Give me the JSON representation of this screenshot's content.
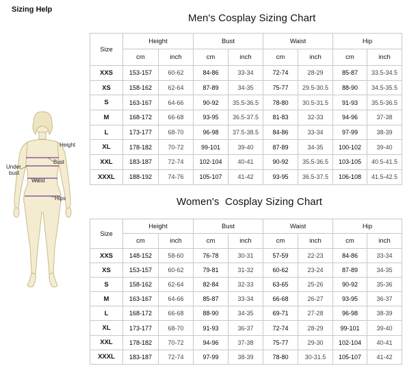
{
  "page": {
    "title": "Sizing Help"
  },
  "figure": {
    "labels": {
      "height": "Height",
      "bust": "Bust",
      "under_bust_1": "Under",
      "under_bust_2": "bust",
      "waist": "Waist",
      "hips": "Hips"
    }
  },
  "men": {
    "title": "Men's Cosplay Sizing Chart",
    "headers": {
      "size": "Size",
      "groups": [
        "Height",
        "Bust",
        "Waist",
        "Hip"
      ],
      "units": [
        "cm",
        "inch",
        "cm",
        "inch",
        "cm",
        "inch",
        "cm",
        "inch"
      ]
    },
    "rows": [
      {
        "size": "XXS",
        "values": [
          "153-157",
          "60-62",
          "84-86",
          "33-34",
          "72-74",
          "28-29",
          "85-87",
          "33.5-34.5"
        ]
      },
      {
        "size": "XS",
        "values": [
          "158-162",
          "62-64",
          "87-89",
          "34-35",
          "75-77",
          "29.5-30.5",
          "88-90",
          "34.5-35.5"
        ]
      },
      {
        "size": "S",
        "values": [
          "163-167",
          "64-66",
          "90-92",
          "35.5-36.5",
          "78-80",
          "30.5-31.5",
          "91-93",
          "35.5-36.5"
        ]
      },
      {
        "size": "M",
        "values": [
          "168-172",
          "66-68",
          "93-95",
          "36.5-37.5",
          "81-83",
          "32-33",
          "94-96",
          "37-38"
        ]
      },
      {
        "size": "L",
        "values": [
          "173-177",
          "68-70",
          "96-98",
          "37.5-38.5",
          "84-86",
          "33-34",
          "97-99",
          "38-39"
        ]
      },
      {
        "size": "XL",
        "values": [
          "178-182",
          "70-72",
          "99-101",
          "39-40",
          "87-89",
          "34-35",
          "100-102",
          "39-40"
        ]
      },
      {
        "size": "XXL",
        "values": [
          "183-187",
          "72-74",
          "102-104",
          "40-41",
          "90-92",
          "35.5-36.5",
          "103-105",
          "40.5-41.5"
        ]
      },
      {
        "size": "XXXL",
        "values": [
          "188-192",
          "74-76",
          "105-107",
          "41-42",
          "93-95",
          "36.5-37.5",
          "106-108",
          "41.5-42.5"
        ]
      }
    ]
  },
  "women": {
    "title": "Women's  Cosplay Sizing Chart",
    "headers": {
      "size": "Size",
      "groups": [
        "Height",
        "Bust",
        "Waist",
        "Hip"
      ],
      "units": [
        "cm",
        "inch",
        "cm",
        "inch",
        "cm",
        "inch",
        "cm",
        "inch"
      ]
    },
    "rows": [
      {
        "size": "XXS",
        "values": [
          "148-152",
          "58-60",
          "76-78",
          "30-31",
          "57-59",
          "22-23",
          "84-86",
          "33-34"
        ]
      },
      {
        "size": "XS",
        "values": [
          "153-157",
          "60-62",
          "79-81",
          "31-32",
          "60-62",
          "23-24",
          "87-89",
          "34-35"
        ]
      },
      {
        "size": "S",
        "values": [
          "158-162",
          "62-64",
          "82-84",
          "32-33",
          "63-65",
          "25-26",
          "90-92",
          "35-36"
        ]
      },
      {
        "size": "M",
        "values": [
          "163-167",
          "64-66",
          "85-87",
          "33-34",
          "66-68",
          "26-27",
          "93-95",
          "36-37"
        ]
      },
      {
        "size": "L",
        "values": [
          "168-172",
          "66-68",
          "88-90",
          "34-35",
          "69-71",
          "27-28",
          "96-98",
          "38-39"
        ]
      },
      {
        "size": "XL",
        "values": [
          "173-177",
          "68-70",
          "91-93",
          "36-37",
          "72-74",
          "28-29",
          "99-101",
          "39-40"
        ]
      },
      {
        "size": "XXL",
        "values": [
          "178-182",
          "70-72",
          "94-96",
          "37-38",
          "75-77",
          "29-30",
          "102-104",
          "40-41"
        ]
      },
      {
        "size": "XXXL",
        "values": [
          "183-187",
          "72-74",
          "97-99",
          "38-39",
          "78-80",
          "30-31.5",
          "105-107",
          "41-42"
        ]
      }
    ]
  },
  "colors": {
    "figure_fill": "#f4ecd0",
    "figure_stroke": "#c9b98c",
    "measure_line": "#7a3e9d",
    "grid": "#c8c8c8"
  }
}
